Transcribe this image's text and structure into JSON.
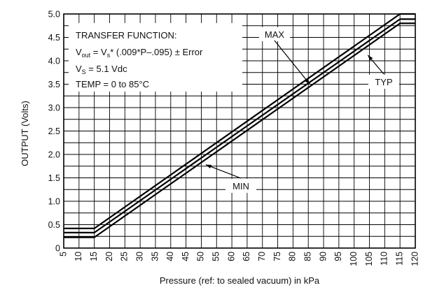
{
  "chart_data": {
    "type": "line",
    "title": "",
    "xlabel": "Pressure (ref: to sealed vacuum) in kPa",
    "ylabel": "OUTPUT (Volts)",
    "xlim": [
      5,
      120
    ],
    "ylim": [
      0,
      5.0
    ],
    "x_ticks": [
      "5",
      "10",
      "15",
      "20",
      "25",
      "30",
      "35",
      "40",
      "45",
      "50",
      "55",
      "60",
      "65",
      "70",
      "75",
      "80",
      "85",
      "90",
      "95",
      "100",
      "105",
      "110",
      "115",
      "120"
    ],
    "y_ticks": [
      "0",
      "0.5",
      "1.0",
      "1.5",
      "2.0",
      "2.5",
      "3.0",
      "3.5",
      "4.0",
      "4.5",
      "5.0"
    ],
    "grid": true,
    "series": [
      {
        "name": "MAX",
        "x": [
          5,
          15,
          115,
          120
        ],
        "y": [
          0.42,
          0.42,
          5.0,
          5.0
        ]
      },
      {
        "name": "TYP",
        "x": [
          5,
          15,
          115,
          120
        ],
        "y": [
          0.33,
          0.33,
          4.89,
          4.89
        ]
      },
      {
        "name": "MIN",
        "x": [
          5,
          15,
          115,
          120
        ],
        "y": [
          0.23,
          0.23,
          4.8,
          4.8
        ]
      }
    ],
    "transfer_function": {
      "heading": "TRANSFER FUNCTION:",
      "vout_main": "V",
      "vout_sub": "out",
      "vout_eq": " = V",
      "vs_sub": "s",
      "vout_rest": "* (.009*P–.095) ± Error",
      "supply_main": "V",
      "supply_sub": "S",
      "supply_rest": " = 5.1 Vdc",
      "temp": "TEMP = 0 to 85°C"
    }
  }
}
